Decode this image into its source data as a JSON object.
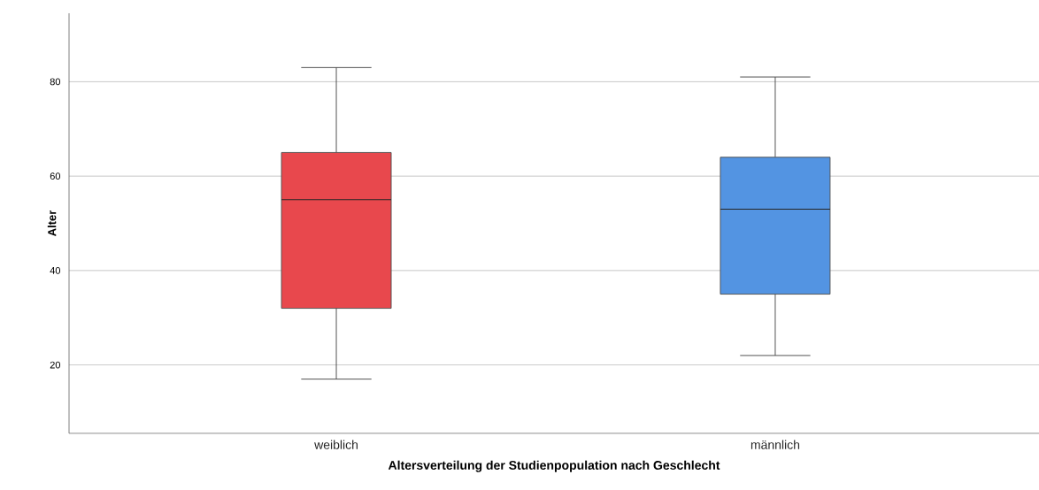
{
  "chart_data": {
    "type": "box",
    "xlabel": "Altersverteilung der Studienpopulation nach Geschlecht",
    "ylabel": "Alter",
    "categories": [
      "weiblich",
      "männlich"
    ],
    "boxes": [
      {
        "low": 17,
        "q1": 32,
        "median": 55,
        "q3": 65,
        "high": 83
      },
      {
        "low": 22,
        "q1": 35,
        "median": 53,
        "q3": 64,
        "high": 81
      }
    ],
    "colors": [
      "#e8484d",
      "#5394e2"
    ],
    "ylim": [
      5.5,
      94.5
    ],
    "yticks": [
      20,
      40,
      60,
      80
    ],
    "grid": "y"
  }
}
